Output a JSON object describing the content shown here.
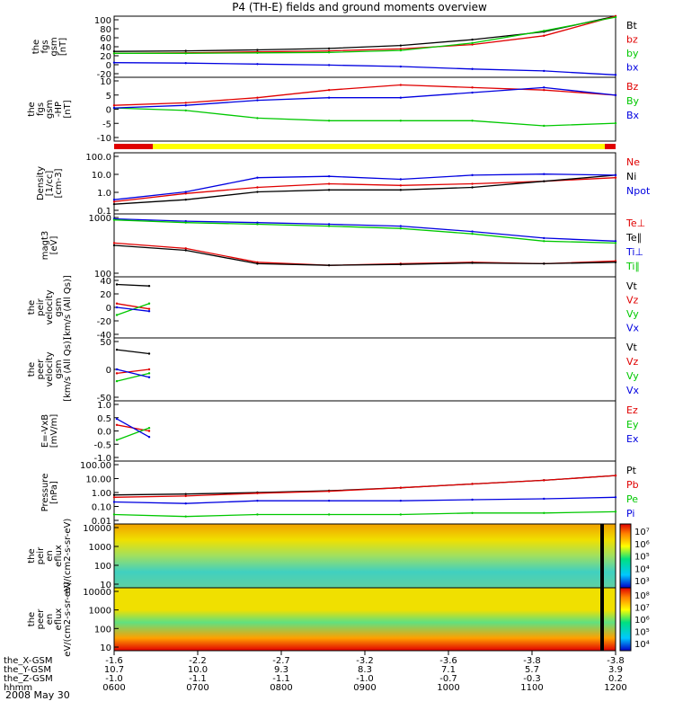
{
  "title": "P4 (TH-E) fields and ground moments overview",
  "date_label": "2008 May 30",
  "colors": {
    "black": "#000000",
    "red": "#e00000",
    "green": "#00c800",
    "blue": "#0000e0",
    "yellow": "#ffff00"
  },
  "chart_data": [
    {
      "type": "line",
      "id": "fgs_gsm",
      "ylabel": [
        "the",
        "fgs",
        "gsm",
        "[nT]"
      ],
      "yticks": [
        "100",
        "80",
        "60",
        "40",
        "20",
        "0",
        "-20"
      ],
      "ylim": [
        -25,
        100
      ],
      "series": [
        {
          "name": "Bt",
          "color": "black",
          "values": [
            28,
            29,
            31,
            34,
            40,
            52,
            68,
            100
          ]
        },
        {
          "name": "bz",
          "color": "red",
          "values": [
            24,
            25,
            27,
            29,
            33,
            42,
            60,
            100
          ]
        },
        {
          "name": "by",
          "color": "green",
          "values": [
            24,
            24,
            25,
            26,
            30,
            45,
            70,
            98
          ]
        },
        {
          "name": "bx",
          "color": "blue",
          "values": [
            5,
            4,
            2,
            0,
            -3,
            -8,
            -12,
            -20
          ]
        }
      ]
    },
    {
      "type": "line",
      "id": "fgs_gse_hp",
      "ylabel": [
        "the",
        "fgs",
        "gsm",
        "-HP",
        "[nT]"
      ],
      "yticks": [
        "10",
        "5",
        "0",
        "-5",
        "-10"
      ],
      "ylim": [
        -14,
        11
      ],
      "series": [
        {
          "name": "Bz",
          "color": "red",
          "values": [
            0,
            1,
            3,
            6,
            8,
            7,
            6,
            4
          ]
        },
        {
          "name": "By",
          "color": "green",
          "values": [
            -1,
            -2,
            -5,
            -6,
            -6,
            -6,
            -8,
            -7
          ]
        },
        {
          "name": "Bx",
          "color": "blue",
          "values": [
            -1,
            0,
            2,
            3,
            3,
            5,
            7,
            4
          ]
        }
      ]
    },
    {
      "type": "line",
      "id": "density",
      "ylabel": [
        "Density",
        "[1/cc]",
        "[cm-3]"
      ],
      "yticks": [
        "100.0",
        "10.0",
        "1.0",
        "0.1"
      ],
      "ylim": [
        0.1,
        100
      ],
      "yscale": "log",
      "series": [
        {
          "name": "Ne",
          "color": "red",
          "values": [
            0.4,
            1.0,
            2.0,
            3.0,
            2.5,
            3.0,
            4.0,
            6.0
          ]
        },
        {
          "name": "Ni",
          "color": "black",
          "values": [
            0.3,
            0.5,
            1.2,
            1.5,
            1.5,
            2.0,
            4.0,
            8.0
          ]
        },
        {
          "name": "Npot",
          "color": "blue",
          "values": [
            0.5,
            1.2,
            6.0,
            7.0,
            5.0,
            8.0,
            9.0,
            8.0
          ]
        }
      ]
    },
    {
      "type": "line",
      "id": "temperature",
      "ylabel": [
        "magt3",
        "[eV]"
      ],
      "yticks": [
        "1000",
        "100"
      ],
      "ylim": [
        20,
        8000
      ],
      "yscale": "log",
      "series": [
        {
          "name": "Te⊥",
          "color": "red",
          "values": [
            500,
            300,
            80,
            60,
            70,
            80,
            70,
            90
          ]
        },
        {
          "name": "Te∥",
          "color": "black",
          "values": [
            400,
            250,
            70,
            60,
            65,
            75,
            70,
            80
          ]
        },
        {
          "name": "Ti⊥",
          "color": "blue",
          "values": [
            5000,
            4000,
            3500,
            3000,
            2500,
            1500,
            800,
            600
          ]
        },
        {
          "name": "Ti∥",
          "color": "green",
          "values": [
            4500,
            3500,
            3000,
            2500,
            2000,
            1200,
            600,
            500
          ]
        }
      ]
    },
    {
      "type": "line",
      "id": "peir_velocity",
      "ylabel": [
        "the",
        "peir",
        "velocity",
        "gsm",
        "[km/s (All Qs)]"
      ],
      "yticks": [
        "40",
        "20",
        "0",
        "-20",
        "-40"
      ],
      "ylim": [
        -40,
        40
      ],
      "series": [
        {
          "name": "Vt",
          "color": "black",
          "values": [
            30,
            28,
            null,
            null,
            null,
            null,
            null,
            null
          ]
        },
        {
          "name": "Vz",
          "color": "red",
          "values": [
            5,
            -2,
            null,
            null,
            null,
            null,
            null,
            null
          ]
        },
        {
          "name": "Vy",
          "color": "green",
          "values": [
            -10,
            5,
            null,
            null,
            null,
            null,
            null,
            null
          ]
        },
        {
          "name": "Vx",
          "color": "blue",
          "values": [
            0,
            -5,
            null,
            null,
            null,
            null,
            null,
            null
          ]
        }
      ]
    },
    {
      "type": "line",
      "id": "peer_velocity",
      "ylabel": [
        "the",
        "peer",
        "velocity",
        "gsm",
        "[km/s (All Qs)]"
      ],
      "yticks": [
        "50",
        "0",
        "-50"
      ],
      "ylim": [
        -70,
        90
      ],
      "series": [
        {
          "name": "Vt",
          "color": "black",
          "values": [
            60,
            50,
            null,
            null,
            null,
            null,
            null,
            null
          ]
        },
        {
          "name": "Vz",
          "color": "red",
          "values": [
            0,
            10,
            null,
            null,
            null,
            null,
            null,
            null
          ]
        },
        {
          "name": "Vy",
          "color": "green",
          "values": [
            -20,
            0,
            null,
            null,
            null,
            null,
            null,
            null
          ]
        },
        {
          "name": "Vx",
          "color": "blue",
          "values": [
            10,
            -10,
            null,
            null,
            null,
            null,
            null,
            null
          ]
        }
      ]
    },
    {
      "type": "line",
      "id": "efield",
      "ylabel": [
        "E=-VxB",
        "[mV/m]"
      ],
      "yticks": [
        "1.0",
        "0.5",
        "0.0",
        "-0.5",
        "-1.0"
      ],
      "ylim": [
        -1,
        1
      ],
      "series": [
        {
          "name": "Ez",
          "color": "red",
          "values": [
            0.2,
            0,
            null,
            null,
            null,
            null,
            null,
            null
          ]
        },
        {
          "name": "Ey",
          "color": "green",
          "values": [
            -0.3,
            0.1,
            null,
            null,
            null,
            null,
            null,
            null
          ]
        },
        {
          "name": "Ex",
          "color": "blue",
          "values": [
            0.4,
            -0.2,
            null,
            null,
            null,
            null,
            null,
            null
          ]
        }
      ]
    },
    {
      "type": "line",
      "id": "pressure",
      "ylabel": [
        "Pressure",
        "[nPa]"
      ],
      "yticks": [
        "100.00",
        "10.00",
        "1.00",
        "0.10",
        "0.01"
      ],
      "ylim": [
        0.01,
        100
      ],
      "yscale": "log",
      "series": [
        {
          "name": "Pt",
          "color": "black",
          "values": [
            0.7,
            0.8,
            1.0,
            1.3,
            2.0,
            3.5,
            6.0,
            12.0
          ]
        },
        {
          "name": "Pb",
          "color": "red",
          "values": [
            0.5,
            0.6,
            0.9,
            1.2,
            2.0,
            3.5,
            6.0,
            12.0
          ]
        },
        {
          "name": "Pe",
          "color": "green",
          "values": [
            0.04,
            0.03,
            0.04,
            0.04,
            0.04,
            0.05,
            0.05,
            0.06
          ]
        },
        {
          "name": "Pi",
          "color": "blue",
          "values": [
            0.25,
            0.2,
            0.3,
            0.3,
            0.3,
            0.35,
            0.4,
            0.5
          ]
        }
      ]
    },
    {
      "type": "heatmap",
      "id": "peir_en_eflux",
      "ylabel": [
        "the",
        "peir",
        "en",
        "eflux",
        "eV/(cm2-s-sr-eV)"
      ],
      "yticks": [
        "10000",
        "1000",
        "100",
        "10"
      ],
      "colorbar": [
        "10⁷",
        "10⁶",
        "10⁵",
        "10⁴",
        "10³"
      ]
    },
    {
      "type": "heatmap",
      "id": "peer_en_eflux",
      "ylabel": [
        "the",
        "peer",
        "en",
        "eflux",
        "eV/(cm2-s-sr-eV)"
      ],
      "yticks": [
        "10000",
        "1000",
        "100",
        "10"
      ],
      "colorbar": [
        "10⁸",
        "10⁷",
        "10⁶",
        "10⁵",
        "10⁴"
      ]
    }
  ],
  "xaxis": {
    "rows": [
      {
        "label": "the_X-GSM",
        "values": [
          "-1.6",
          "-2.2",
          "-2.7",
          "-3.2",
          "-3.6",
          "-3.8",
          "-3.8"
        ]
      },
      {
        "label": "the_Y-GSM",
        "values": [
          "10.7",
          "10.0",
          "9.3",
          "8.3",
          "7.1",
          "5.7",
          "3.9"
        ]
      },
      {
        "label": "the_Z-GSM",
        "values": [
          "-1.0",
          "-1.1",
          "-1.1",
          "-1.0",
          "-0.7",
          "-0.3",
          "0.2"
        ]
      },
      {
        "label": "hhmm",
        "values": [
          "0600",
          "0700",
          "0800",
          "0900",
          "1000",
          "1100",
          "1200"
        ]
      }
    ]
  }
}
